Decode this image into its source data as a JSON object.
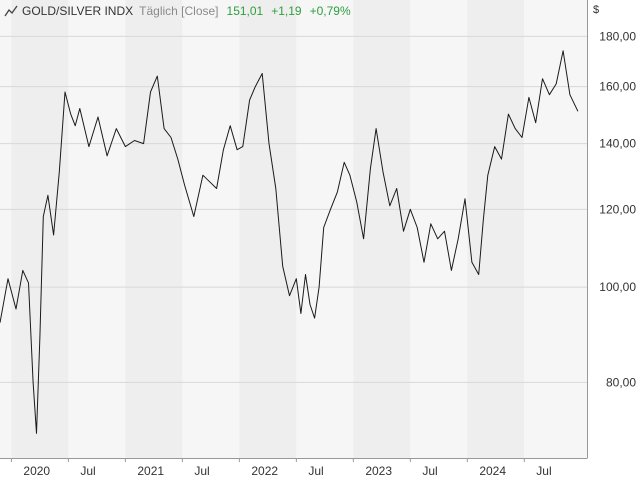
{
  "header": {
    "symbol": "GOLD/SILVER INDX",
    "period": "Täglich [Close]",
    "last": "151,01",
    "change": "+1,19",
    "change_pct": "+0,79%",
    "icon": "line-chart-icon"
  },
  "currency_label": "$",
  "colors": {
    "line": "#1a1a1a",
    "positive": "#2e9e3e",
    "band_dark": "#eeeeee",
    "band_light": "#f6f6f6",
    "grid": "#d8d8d8",
    "axis": "#999999"
  },
  "chart_data": {
    "type": "line",
    "title": "GOLD/SILVER INDX",
    "y_scale": "log",
    "ylim": [
      67,
      196
    ],
    "y_ticks": [
      {
        "value": 80,
        "label": "80,00"
      },
      {
        "value": 100,
        "label": "100,00"
      },
      {
        "value": 120,
        "label": "120,00"
      },
      {
        "value": 140,
        "label": "140,00"
      },
      {
        "value": 160,
        "label": "160,00"
      },
      {
        "value": 180,
        "label": "180,00"
      }
    ],
    "x_ticks": [
      {
        "t": 2020.0,
        "label": "2020"
      },
      {
        "t": 2020.5,
        "label": "Jul"
      },
      {
        "t": 2021.0,
        "label": "2021"
      },
      {
        "t": 2021.5,
        "label": "Jul"
      },
      {
        "t": 2022.0,
        "label": "2022"
      },
      {
        "t": 2022.5,
        "label": "Jul"
      },
      {
        "t": 2023.0,
        "label": "2023"
      },
      {
        "t": 2023.5,
        "label": "Jul"
      },
      {
        "t": 2024.0,
        "label": "2024"
      },
      {
        "t": 2024.5,
        "label": "Jul"
      }
    ],
    "xlim": [
      2019.9,
      2025.05
    ],
    "series": [
      {
        "t": [
          2019.9,
          2019.97,
          2020.04,
          2020.1,
          2020.15,
          2020.19,
          2020.22,
          2020.25,
          2020.28,
          2020.32,
          2020.37,
          2020.42,
          2020.47,
          2020.52,
          2020.56,
          2020.6,
          2020.68,
          2020.76,
          2020.84,
          2020.92,
          2021.0,
          2021.08,
          2021.16,
          2021.22,
          2021.28,
          2021.34,
          2021.4,
          2021.46,
          2021.52,
          2021.6,
          2021.68,
          2021.74,
          2021.8,
          2021.86,
          2021.92,
          2021.98,
          2022.03,
          2022.09,
          2022.14,
          2022.2,
          2022.26,
          2022.32,
          2022.38,
          2022.44,
          2022.5,
          2022.54,
          2022.58,
          2022.62,
          2022.66,
          2022.7,
          2022.74,
          2022.8,
          2022.86,
          2022.92,
          2022.97,
          2023.03,
          2023.09,
          2023.15,
          2023.2,
          2023.26,
          2023.32,
          2023.38,
          2023.44,
          2023.5,
          2023.56,
          2023.62,
          2023.68,
          2023.74,
          2023.8,
          2023.86,
          2023.92,
          2023.98,
          2024.04,
          2024.1,
          2024.14,
          2024.18,
          2024.24,
          2024.3,
          2024.36,
          2024.42,
          2024.48,
          2024.54,
          2024.6,
          2024.66,
          2024.72,
          2024.78,
          2024.84,
          2024.9,
          2024.97
        ],
        "values": [
          92,
          102,
          95,
          104,
          101,
          80,
          71,
          89,
          118,
          124,
          113,
          131,
          158,
          150,
          146,
          152,
          139,
          149,
          136,
          145,
          139,
          141,
          140,
          158,
          164,
          145,
          142,
          135,
          127,
          118,
          130,
          128,
          126,
          138,
          146,
          138,
          139,
          155,
          160,
          165,
          140,
          126,
          105,
          98,
          102,
          94,
          103,
          96,
          93,
          100,
          115,
          120,
          125,
          134,
          130,
          122,
          112,
          132,
          145,
          131,
          121,
          126,
          114,
          120,
          115,
          106,
          116,
          112,
          114,
          104,
          112,
          123,
          106,
          103,
          117,
          130,
          139,
          135,
          150,
          145,
          142,
          156,
          147,
          163,
          157,
          161,
          174,
          157,
          151.01
        ]
      }
    ]
  }
}
